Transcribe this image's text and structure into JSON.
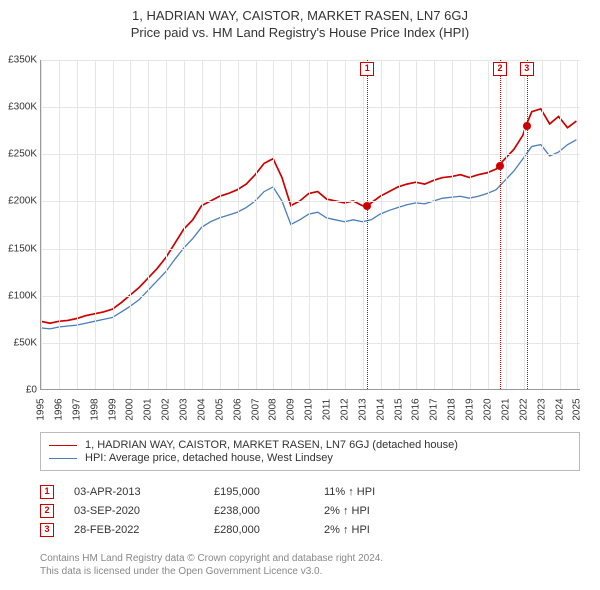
{
  "title_main": "1, HADRIAN WAY, CAISTOR, MARKET RASEN, LN7 6GJ",
  "title_sub": "Price paid vs. HM Land Registry's House Price Index (HPI)",
  "chart": {
    "type": "line",
    "background_color": "#ffffff",
    "grid_color": "#e6e6e6",
    "axis_color": "#999999",
    "marker_color": "#cc0000",
    "xlim": [
      1995,
      2025.2
    ],
    "ylim": [
      0,
      350000
    ],
    "ytick_step": 50000,
    "ytick_prefix": "£",
    "ytick_labels": [
      "£0",
      "£50K",
      "£100K",
      "£150K",
      "£200K",
      "£250K",
      "£300K",
      "£350K"
    ],
    "xtick_years": [
      1995,
      1996,
      1997,
      1998,
      1999,
      2000,
      2001,
      2002,
      2003,
      2004,
      2005,
      2006,
      2007,
      2008,
      2009,
      2010,
      2011,
      2012,
      2013,
      2014,
      2015,
      2016,
      2017,
      2018,
      2019,
      2020,
      2021,
      2022,
      2023,
      2024,
      2025
    ],
    "series": [
      {
        "name": "price_paid",
        "label": "1, HADRIAN WAY, CAISTOR, MARKET RASEN, LN7 6GJ (detached house)",
        "color": "#cc0000",
        "line_width": 1.7,
        "x": [
          1995,
          1995.5,
          1996,
          1996.5,
          1997,
          1997.5,
          1998,
          1998.5,
          1999,
          1999.5,
          2000,
          2000.5,
          2001,
          2001.5,
          2002,
          2002.5,
          2003,
          2003.5,
          2004,
          2004.5,
          2005,
          2005.5,
          2006,
          2006.5,
          2007,
          2007.5,
          2008,
          2008.5,
          2009,
          2009.5,
          2010,
          2010.5,
          2011,
          2011.5,
          2012,
          2012.5,
          2013,
          2013.25,
          2013.5,
          2014,
          2014.5,
          2015,
          2015.5,
          2016,
          2016.5,
          2017,
          2017.5,
          2018,
          2018.5,
          2019,
          2019.5,
          2020,
          2020.5,
          2020.67,
          2021,
          2021.5,
          2022,
          2022.17,
          2022.5,
          2023,
          2023.5,
          2024,
          2024.5,
          2025
        ],
        "y": [
          72,
          70,
          72,
          73,
          75,
          78,
          80,
          82,
          85,
          92,
          100,
          108,
          118,
          128,
          140,
          155,
          170,
          180,
          195,
          200,
          205,
          208,
          212,
          218,
          228,
          240,
          245,
          225,
          195,
          200,
          208,
          210,
          202,
          200,
          198,
          200,
          195,
          195,
          198,
          205,
          210,
          215,
          218,
          220,
          218,
          222,
          225,
          226,
          228,
          225,
          228,
          230,
          234,
          238,
          245,
          255,
          270,
          280,
          295,
          298,
          282,
          290,
          278,
          285
        ]
      },
      {
        "name": "hpi",
        "label": "HPI: Average price, detached house, West Lindsey",
        "color": "#4a7ebb",
        "line_width": 1.3,
        "x": [
          1995,
          1995.5,
          1996,
          1996.5,
          1997,
          1997.5,
          1998,
          1998.5,
          1999,
          1999.5,
          2000,
          2000.5,
          2001,
          2001.5,
          2002,
          2002.5,
          2003,
          2003.5,
          2004,
          2004.5,
          2005,
          2005.5,
          2006,
          2006.5,
          2007,
          2007.5,
          2008,
          2008.5,
          2009,
          2009.5,
          2010,
          2010.5,
          2011,
          2011.5,
          2012,
          2012.5,
          2013,
          2013.5,
          2014,
          2014.5,
          2015,
          2015.5,
          2016,
          2016.5,
          2017,
          2017.5,
          2018,
          2018.5,
          2019,
          2019.5,
          2020,
          2020.5,
          2021,
          2021.5,
          2022,
          2022.5,
          2023,
          2023.5,
          2024,
          2024.5,
          2025
        ],
        "y": [
          65,
          64,
          66,
          67,
          68,
          70,
          72,
          74,
          76,
          82,
          88,
          95,
          105,
          115,
          125,
          138,
          150,
          160,
          172,
          178,
          182,
          185,
          188,
          193,
          200,
          210,
          215,
          200,
          175,
          180,
          186,
          188,
          182,
          180,
          178,
          180,
          178,
          180,
          186,
          190,
          193,
          196,
          198,
          197,
          200,
          203,
          204,
          205,
          203,
          205,
          208,
          212,
          222,
          232,
          245,
          258,
          260,
          248,
          252,
          260,
          265
        ]
      }
    ],
    "sale_markers": [
      {
        "n": "1",
        "year": 2013.25,
        "price": 195000
      },
      {
        "n": "2",
        "year": 2020.67,
        "price": 238000
      },
      {
        "n": "3",
        "year": 2022.17,
        "price": 280000
      }
    ],
    "sale_dot_color": "#cc0000"
  },
  "legend": {
    "rows": [
      {
        "color": "#cc0000",
        "width": 1.7,
        "label": "1, HADRIAN WAY, CAISTOR, MARKET RASEN, LN7 6GJ (detached house)"
      },
      {
        "color": "#4a7ebb",
        "width": 1.3,
        "label": "HPI: Average price, detached house, West Lindsey"
      }
    ]
  },
  "sales_table": [
    {
      "n": "1",
      "date": "03-APR-2013",
      "price": "£195,000",
      "delta": "11% ↑ HPI"
    },
    {
      "n": "2",
      "date": "03-SEP-2020",
      "price": "£238,000",
      "delta": "2% ↑ HPI"
    },
    {
      "n": "3",
      "date": "28-FEB-2022",
      "price": "£280,000",
      "delta": "2% ↑ HPI"
    }
  ],
  "footer_line1": "Contains HM Land Registry data © Crown copyright and database right 2024.",
  "footer_line2": "This data is licensed under the Open Government Licence v3.0."
}
